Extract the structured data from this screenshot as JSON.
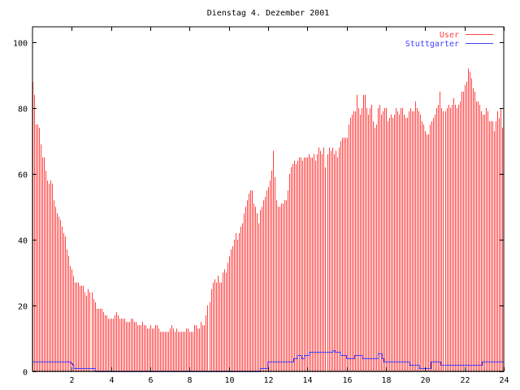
{
  "chart_data": {
    "type": "bar",
    "title": "Dienstag 4. Dezember 2001",
    "xlabel": "",
    "ylabel": "",
    "xlim": [
      0,
      24
    ],
    "ylim": [
      0,
      105
    ],
    "x_ticks": [
      2,
      4,
      6,
      8,
      10,
      12,
      14,
      16,
      18,
      20,
      22,
      24
    ],
    "y_ticks": [
      0,
      20,
      40,
      60,
      80,
      100
    ],
    "x_tick_labels": [
      "2",
      "4",
      "6",
      "8",
      "10",
      "12",
      "14",
      "16",
      "18",
      "20",
      "22",
      "24"
    ],
    "y_tick_labels": [
      "0",
      "20",
      "40",
      "60",
      "80",
      "100"
    ],
    "legend_position": "top-right",
    "series": [
      {
        "name": "User",
        "style": "impulses",
        "color": "#ff4040",
        "x_step_minutes": 5,
        "values": [
          88,
          84,
          75,
          75,
          74,
          69,
          65,
          65,
          61,
          58,
          57,
          58,
          57,
          52,
          50,
          48,
          47,
          46,
          44,
          42,
          41,
          37,
          35,
          32,
          31,
          29,
          27,
          27,
          27,
          26,
          26,
          26,
          24,
          23,
          25,
          24,
          24,
          22,
          21,
          19,
          19,
          19,
          19,
          18,
          17,
          17,
          16,
          16,
          16,
          16,
          17,
          18,
          17,
          16,
          16,
          16,
          16,
          15,
          15,
          15,
          16,
          16,
          15,
          15,
          14,
          14,
          14,
          15,
          14,
          14,
          13,
          13,
          14,
          13,
          13,
          14,
          14,
          13,
          12,
          12,
          12,
          12,
          12,
          12,
          13,
          14,
          13,
          12,
          13,
          12,
          12,
          12,
          12,
          12,
          13,
          13,
          12,
          12,
          12,
          14,
          14,
          13,
          13,
          15,
          14,
          14,
          17,
          20,
          21,
          25,
          27,
          28,
          27,
          29,
          27,
          27,
          30,
          31,
          30,
          33,
          35,
          37,
          38,
          40,
          42,
          40,
          42,
          44,
          45,
          48,
          50,
          52,
          54,
          55,
          55,
          51,
          50,
          48,
          45,
          49,
          50,
          52,
          53,
          55,
          56,
          58,
          61,
          67,
          59,
          52,
          50,
          50,
          51,
          51,
          52,
          52,
          55,
          60,
          62,
          63,
          64,
          63,
          64,
          65,
          65,
          64,
          65,
          65,
          65,
          66,
          65,
          65,
          66,
          64,
          66,
          68,
          67,
          66,
          68,
          62,
          66,
          68,
          67,
          68,
          66,
          67,
          65,
          68,
          70,
          71,
          71,
          71,
          71,
          75,
          77,
          78,
          79,
          79,
          84,
          80,
          78,
          80,
          84,
          84,
          80,
          78,
          80,
          81,
          76,
          74,
          75,
          80,
          81,
          78,
          79,
          80,
          80,
          76,
          77,
          78,
          77,
          78,
          80,
          79,
          78,
          80,
          80,
          78,
          77,
          77,
          79,
          80,
          79,
          79,
          82,
          80,
          79,
          78,
          76,
          75,
          73,
          72,
          72,
          75,
          76,
          77,
          78,
          80,
          81,
          85,
          80,
          79,
          79,
          80,
          81,
          80,
          81,
          83,
          81,
          80,
          81,
          82,
          85,
          85,
          87,
          88,
          92,
          91,
          89,
          86,
          85,
          82,
          82,
          81,
          79,
          78,
          78,
          80,
          79,
          76,
          76,
          76,
          73,
          76,
          79,
          77,
          80,
          74
        ]
      },
      {
        "name": "Stuttgarter",
        "style": "steps",
        "color": "#4040ff",
        "points": [
          [
            0,
            3
          ],
          [
            1.95,
            2.5
          ],
          [
            2.05,
            2
          ],
          [
            2.1,
            1
          ],
          [
            3.2,
            0
          ],
          [
            11.6,
            1
          ],
          [
            12.0,
            3
          ],
          [
            13.3,
            4
          ],
          [
            13.5,
            5
          ],
          [
            13.7,
            4
          ],
          [
            13.85,
            5
          ],
          [
            14.1,
            6
          ],
          [
            15.3,
            6.5
          ],
          [
            15.4,
            6
          ],
          [
            15.7,
            5
          ],
          [
            16.0,
            4
          ],
          [
            16.4,
            5
          ],
          [
            16.8,
            4
          ],
          [
            17.6,
            5.5
          ],
          [
            17.8,
            4
          ],
          [
            17.9,
            3
          ],
          [
            19.2,
            2
          ],
          [
            19.7,
            1
          ],
          [
            20.3,
            3
          ],
          [
            20.8,
            2
          ],
          [
            22.9,
            3
          ],
          [
            24,
            3
          ]
        ]
      }
    ]
  }
}
